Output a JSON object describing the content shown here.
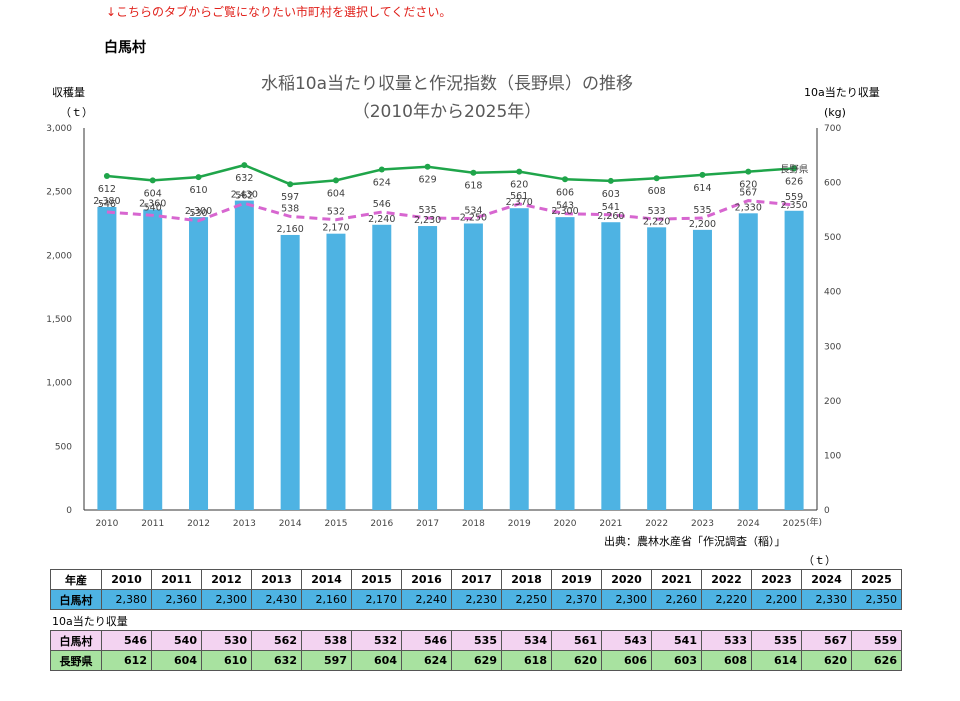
{
  "notice": "↓こちらのタブからご覧になりたい市町村を選択してください。",
  "village_name": "白馬村",
  "chart_data": {
    "type": "bar+line",
    "title": "水稲10a当たり収量と作況指数（長野県）の推移",
    "subtitle": "（2010年から2025年）",
    "left_axis_label": "収穫量",
    "left_axis_unit": "（ｔ）",
    "right_axis_label": "10a当たり収量",
    "right_axis_unit": "(kg)",
    "x_unit": "(年)",
    "ylim_left": [
      0,
      3000
    ],
    "ylim_right": [
      0,
      700
    ],
    "yticks_left": [
      "0",
      "500",
      "1,000",
      "1,500",
      "2,000",
      "2,500",
      "3,000"
    ],
    "yticks_right": [
      "0",
      "100",
      "200",
      "300",
      "400",
      "500",
      "600",
      "700"
    ],
    "categories": [
      "2010",
      "2011",
      "2012",
      "2013",
      "2014",
      "2015",
      "2016",
      "2017",
      "2018",
      "2019",
      "2020",
      "2021",
      "2022",
      "2023",
      "2024",
      "2025"
    ],
    "series": [
      {
        "name": "白馬村",
        "type": "bar",
        "axis": "left",
        "color": "#4eb3e3",
        "values": [
          2380,
          2360,
          2300,
          2430,
          2160,
          2170,
          2240,
          2230,
          2250,
          2370,
          2300,
          2260,
          2220,
          2200,
          2330,
          2350
        ],
        "labels": [
          "2,380",
          "2,360",
          "2,300",
          "2,430",
          "2,160",
          "2,170",
          "2,240",
          "2,230",
          "2,250",
          "2,370",
          "2,300",
          "2,260",
          "2,220",
          "2,200",
          "2,330",
          "2,350"
        ]
      },
      {
        "name": "白馬村",
        "type": "line-dashed",
        "axis": "right",
        "color": "#d766d0",
        "values": [
          546,
          540,
          530,
          562,
          538,
          532,
          546,
          535,
          534,
          561,
          543,
          541,
          533,
          535,
          567,
          559
        ]
      },
      {
        "name": "長野県",
        "type": "line",
        "axis": "right",
        "color": "#1fa54a",
        "values": [
          612,
          604,
          610,
          632,
          597,
          604,
          624,
          629,
          618,
          620,
          606,
          603,
          608,
          614,
          620,
          626
        ]
      }
    ],
    "line_end_label": "長野県",
    "grid": false
  },
  "source": "出典：農林水産省「作況調査（稲）」",
  "table_unit": "（ｔ）",
  "table": {
    "year_header": "年産",
    "yield_row_label": "白馬村",
    "per_area_caption": "10a当たり収量",
    "hakuba_label": "白馬村",
    "nagano_label": "長野県"
  }
}
